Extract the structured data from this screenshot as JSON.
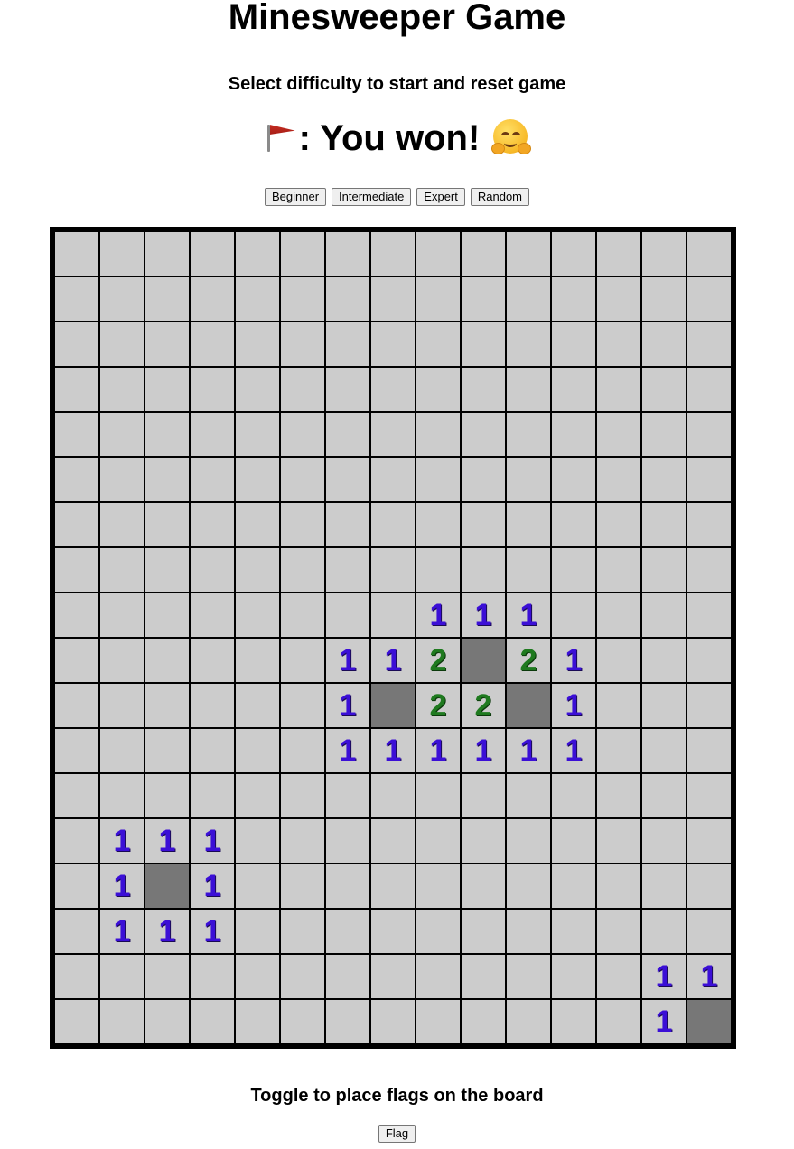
{
  "title": "Minesweeper Game",
  "subtitle": "Select difficulty to start and reset game",
  "status": {
    "text": ": You won!",
    "leading_icon": "red-flag-icon",
    "trailing_icon": "smiling-face-with-open-hands-icon"
  },
  "difficulty_buttons": [
    "Beginner",
    "Intermediate",
    "Expert",
    "Random"
  ],
  "board": {
    "rows": 18,
    "cols": 15,
    "cells": [
      [
        "",
        "",
        "",
        "",
        "",
        "",
        "",
        "",
        "",
        "",
        "",
        "",
        "",
        "",
        ""
      ],
      [
        "",
        "",
        "",
        "",
        "",
        "",
        "",
        "",
        "",
        "",
        "",
        "",
        "",
        "",
        ""
      ],
      [
        "",
        "",
        "",
        "",
        "",
        "",
        "",
        "",
        "",
        "",
        "",
        "",
        "",
        "",
        ""
      ],
      [
        "",
        "",
        "",
        "",
        "",
        "",
        "",
        "",
        "",
        "",
        "",
        "",
        "",
        "",
        ""
      ],
      [
        "",
        "",
        "",
        "",
        "",
        "",
        "",
        "",
        "",
        "",
        "",
        "",
        "",
        "",
        ""
      ],
      [
        "",
        "",
        "",
        "",
        "",
        "",
        "",
        "",
        "",
        "",
        "",
        "",
        "",
        "",
        ""
      ],
      [
        "",
        "",
        "",
        "",
        "",
        "",
        "",
        "",
        "",
        "",
        "",
        "",
        "",
        "",
        ""
      ],
      [
        "",
        "",
        "",
        "",
        "",
        "",
        "",
        "",
        "",
        "",
        "",
        "",
        "",
        "",
        ""
      ],
      [
        "",
        "",
        "",
        "",
        "",
        "",
        "",
        "",
        "1",
        "1",
        "1",
        "",
        "",
        "",
        ""
      ],
      [
        "",
        "",
        "",
        "",
        "",
        "",
        "1",
        "1",
        "2",
        "#",
        "2",
        "1",
        "",
        "",
        ""
      ],
      [
        "",
        "",
        "",
        "",
        "",
        "",
        "1",
        "#",
        "2",
        "2",
        "#",
        "1",
        "",
        "",
        ""
      ],
      [
        "",
        "",
        "",
        "",
        "",
        "",
        "1",
        "1",
        "1",
        "1",
        "1",
        "1",
        "",
        "",
        ""
      ],
      [
        "",
        "",
        "",
        "",
        "",
        "",
        "",
        "",
        "",
        "",
        "",
        "",
        "",
        "",
        ""
      ],
      [
        "",
        "1",
        "1",
        "1",
        "",
        "",
        "",
        "",
        "",
        "",
        "",
        "",
        "",
        "",
        ""
      ],
      [
        "",
        "1",
        "#",
        "1",
        "",
        "",
        "",
        "",
        "",
        "",
        "",
        "",
        "",
        "",
        ""
      ],
      [
        "",
        "1",
        "1",
        "1",
        "",
        "",
        "",
        "",
        "",
        "",
        "",
        "",
        "",
        "",
        ""
      ],
      [
        "",
        "",
        "",
        "",
        "",
        "",
        "",
        "",
        "",
        "",
        "",
        "",
        "",
        "1",
        "1"
      ],
      [
        "",
        "",
        "",
        "",
        "",
        "",
        "",
        "",
        "",
        "",
        "",
        "",
        "",
        "1",
        "#"
      ]
    ],
    "cell_legend": {
      "#": "revealed-dark-cell",
      "": "empty-cell"
    },
    "colors": {
      "cell": "#cccccc",
      "revealed": "#777777",
      "one": "#3b0fd6",
      "two": "#1f7a1f",
      "border": "#000000"
    }
  },
  "footer": {
    "text": "Toggle to place flags on the board",
    "flag_button": "Flag"
  }
}
